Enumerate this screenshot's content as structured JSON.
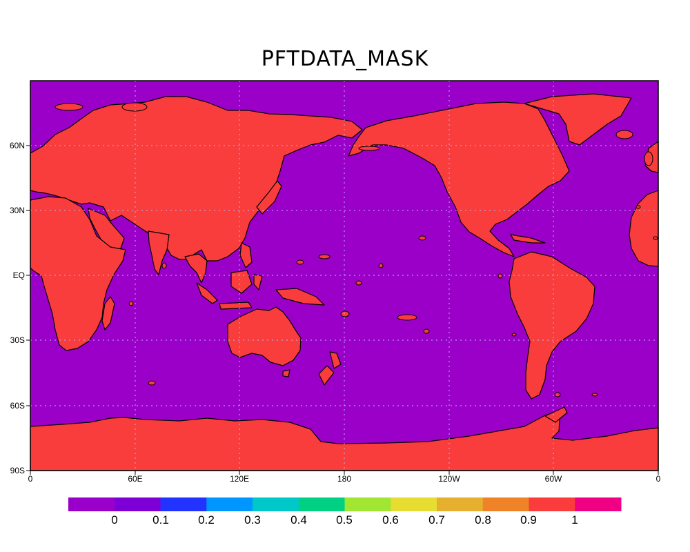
{
  "title": "PFTDATA_MASK",
  "colors": {
    "ocean": "#9b00c8",
    "land": "#f93c3c",
    "coast_mid": "#00c8c8",
    "coast_low": "#5a5aff",
    "coast_high": "#f0a000",
    "grid": "#b8b8ff",
    "frame": "#000000"
  },
  "axes": {
    "lon_ticks": [
      "0",
      "60E",
      "120E",
      "180",
      "120W",
      "60W",
      "0"
    ],
    "lat_ticks": [
      "60N",
      "30N",
      "EQ",
      "30S",
      "60S",
      "90S"
    ]
  },
  "colorbar": {
    "colors": [
      "#9900c9",
      "#7d00d6",
      "#2232ff",
      "#0096ff",
      "#00c8c8",
      "#00d084",
      "#a0e632",
      "#e6dc32",
      "#e6af2d",
      "#f08228",
      "#fa3c3c",
      "#f00082"
    ],
    "labels": [
      "0",
      "0.1",
      "0.2",
      "0.3",
      "0.4",
      "0.5",
      "0.6",
      "0.7",
      "0.8",
      "0.9",
      "1"
    ]
  }
}
